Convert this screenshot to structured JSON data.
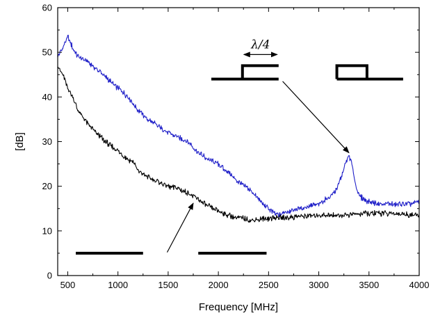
{
  "chart_data": {
    "type": "line",
    "xlabel": "Frequency [MHz]",
    "ylabel": "[dB]",
    "xlim": [
      400,
      4000
    ],
    "ylim": [
      0,
      60
    ],
    "xticks": [
      500,
      1000,
      1500,
      2000,
      2500,
      3000,
      3500,
      4000
    ],
    "yticks": [
      0,
      10,
      20,
      30,
      40,
      50,
      60
    ],
    "grid": false,
    "legend": "none",
    "series": [
      {
        "color": "#1f1fc8",
        "x": [
          400,
          450,
          500,
          550,
          600,
          700,
          800,
          900,
          1000,
          1100,
          1200,
          1300,
          1400,
          1500,
          1600,
          1700,
          1800,
          1900,
          2000,
          2100,
          2200,
          2300,
          2400,
          2500,
          2550,
          2600,
          2700,
          2800,
          2900,
          3000,
          3100,
          3150,
          3200,
          3250,
          3300,
          3330,
          3360,
          3400,
          3450,
          3500,
          3600,
          3700,
          3800,
          3900,
          4000
        ],
        "y": [
          49,
          51,
          53.5,
          51,
          49,
          48,
          46,
          44,
          42,
          40,
          37,
          35,
          33.5,
          32,
          31,
          30,
          27.5,
          26,
          25,
          23,
          21,
          19.5,
          17,
          15,
          14,
          13.5,
          14.5,
          15,
          15.5,
          16,
          17.5,
          18.5,
          20.5,
          24,
          27,
          25,
          21,
          18,
          17,
          16.5,
          16,
          16,
          16,
          16,
          16.5
        ]
      },
      {
        "color": "#000000",
        "x": [
          400,
          450,
          500,
          550,
          600,
          700,
          800,
          900,
          1000,
          1100,
          1150,
          1200,
          1300,
          1400,
          1500,
          1600,
          1700,
          1800,
          1900,
          2000,
          2100,
          2200,
          2300,
          2400,
          2500,
          2600,
          2700,
          2800,
          2900,
          3000,
          3200,
          3400,
          3600,
          3800,
          4000
        ],
        "y": [
          47,
          45,
          42,
          40,
          37,
          34,
          31.5,
          29.5,
          28,
          26,
          25.5,
          23.5,
          22,
          21,
          20,
          19.5,
          18.5,
          17,
          15.5,
          14.5,
          13.5,
          13,
          12.5,
          12.5,
          12.8,
          13,
          13,
          13.2,
          13.3,
          13.5,
          13.5,
          13.8,
          14,
          13.8,
          13.5
        ]
      }
    ],
    "annotations": {
      "label": "λ/4",
      "bars": [
        {
          "x": [
            580,
            1250
          ],
          "y": 5
        },
        {
          "x": [
            1800,
            2480
          ],
          "y": 5
        }
      ],
      "stub_open": {
        "x": [
          1930,
          2600
        ],
        "y": 44,
        "stub_x": [
          2240,
          2600
        ],
        "stub_y": 47
      },
      "stub_closed": {
        "x": [
          3180,
          3840
        ],
        "y": 44,
        "stub_x": [
          3180,
          3480
        ],
        "stub_y": 47
      },
      "span_arrow": {
        "x": [
          2240,
          2600
        ],
        "y": 49.5
      },
      "arrows": [
        {
          "from": [
            2640,
            43.5
          ],
          "to": [
            3300,
            27.5
          ]
        },
        {
          "from": [
            1490,
            5.2
          ],
          "to": [
            1750,
            16.2
          ]
        }
      ]
    }
  }
}
